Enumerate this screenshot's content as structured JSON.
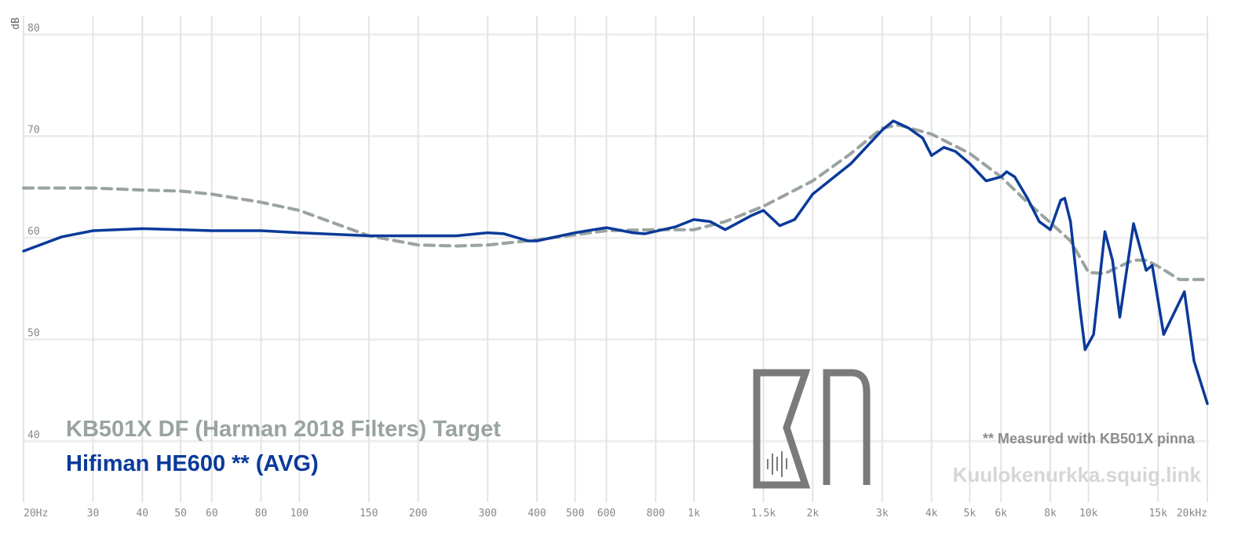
{
  "chart_data": {
    "type": "line",
    "y_label": "dB",
    "xscale": "log",
    "xlim": [
      20,
      20000
    ],
    "ylim": [
      34,
      81
    ],
    "xticks": [
      {
        "value": 20,
        "label": "20Hz"
      },
      30,
      40,
      50,
      60,
      80,
      100,
      150,
      200,
      300,
      400,
      500,
      600,
      800,
      {
        "value": 1000,
        "label": "1k"
      },
      {
        "value": 1500,
        "label": "1.5k"
      },
      {
        "value": 2000,
        "label": "2k"
      },
      {
        "value": 3000,
        "label": "3k"
      },
      {
        "value": 4000,
        "label": "4k"
      },
      {
        "value": 5000,
        "label": "5k"
      },
      {
        "value": 6000,
        "label": "6k"
      },
      {
        "value": 8000,
        "label": "8k"
      },
      {
        "value": 10000,
        "label": "10k"
      },
      {
        "value": 15000,
        "label": "15k"
      },
      {
        "value": 20000,
        "label": "20kHz"
      }
    ],
    "yticks": [
      40,
      50,
      60,
      70,
      80
    ],
    "grid": true,
    "series": [
      {
        "name": "KB501X DF (Harman 2018 Filters) Target",
        "color": "#99a39f",
        "dashed": true,
        "x": [
          20,
          30,
          40,
          50,
          60,
          80,
          100,
          150,
          200,
          250,
          300,
          400,
          500,
          600,
          800,
          1000,
          1200,
          1500,
          2000,
          2500,
          3000,
          3300,
          4000,
          5000,
          6000,
          7000,
          8000,
          9000,
          10000,
          11000,
          12000,
          13000,
          14000,
          15000,
          17000,
          20000
        ],
        "values": [
          64.9,
          64.9,
          64.7,
          64.6,
          64.3,
          63.5,
          62.7,
          60.2,
          59.3,
          59.2,
          59.3,
          59.8,
          60.3,
          60.7,
          60.8,
          60.8,
          61.6,
          63.1,
          65.6,
          68.3,
          70.8,
          71.1,
          70.2,
          68.3,
          66.0,
          63.5,
          61.5,
          59.7,
          56.6,
          56.5,
          57.2,
          57.8,
          57.8,
          57.2,
          55.9,
          55.9
        ]
      },
      {
        "name": "Hifiman HE600 ** (AVG)",
        "color": "#0a3a9a",
        "dashed": false,
        "x": [
          20,
          25,
          30,
          40,
          50,
          60,
          80,
          100,
          150,
          200,
          250,
          300,
          330,
          380,
          400,
          500,
          600,
          700,
          750,
          900,
          1000,
          1100,
          1200,
          1400,
          1500,
          1650,
          1800,
          2000,
          2500,
          3000,
          3200,
          3500,
          3800,
          4000,
          4300,
          4600,
          5000,
          5500,
          6000,
          6200,
          6500,
          7000,
          7500,
          8000,
          8500,
          8700,
          9000,
          9500,
          9800,
          10300,
          11000,
          11500,
          12000,
          13000,
          14000,
          14500,
          15500,
          17500,
          18500,
          20000
        ],
        "values": [
          58.7,
          60.1,
          60.7,
          60.9,
          60.8,
          60.7,
          60.7,
          60.5,
          60.2,
          60.2,
          60.2,
          60.5,
          60.4,
          59.7,
          59.7,
          60.5,
          61.0,
          60.5,
          60.4,
          61.1,
          61.8,
          61.6,
          60.8,
          62.2,
          62.7,
          61.2,
          61.8,
          64.3,
          67.3,
          70.6,
          71.5,
          70.8,
          69.8,
          68.1,
          68.9,
          68.5,
          67.3,
          65.6,
          66.0,
          66.5,
          66.0,
          63.9,
          61.6,
          60.8,
          63.7,
          63.9,
          61.6,
          53.2,
          49.0,
          50.5,
          60.6,
          57.8,
          52.2,
          61.4,
          56.8,
          57.3,
          50.5,
          54.7,
          47.9,
          43.7
        ]
      }
    ],
    "annotations": [
      "** Measured with KB501X pinna",
      "Kuulokenurkka.squig.link"
    ]
  }
}
